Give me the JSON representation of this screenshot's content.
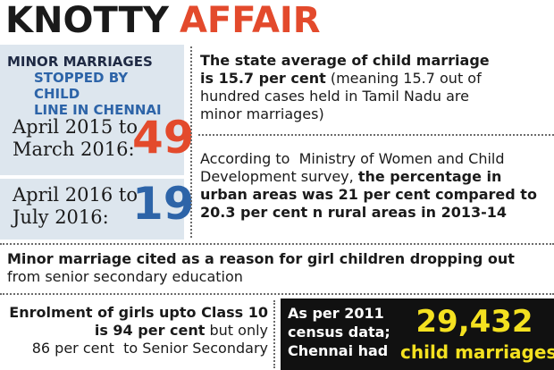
{
  "title": {
    "part1": "KNOTTY",
    "part2": "AFFAIR"
  },
  "colors": {
    "title_dark": "#1a1a1a",
    "title_accent": "#e34a2c",
    "blue": "#2d64a8",
    "panel_bg": "#dde6ee",
    "black_box": "#111111",
    "highlight_yellow": "#f4e120"
  },
  "left_panel": {
    "heading_line1": "MINOR MARRIAGES",
    "heading_line2": "STOPPED BY CHILD",
    "heading_line3": "LINE IN CHENNAI",
    "rows": [
      {
        "period_line1": "April 2015 to",
        "period_line2": "March 2016:",
        "value": "49"
      },
      {
        "period_line1": "April 2016 to",
        "period_line2": "July 2016:",
        "value": "19"
      }
    ]
  },
  "fact1": {
    "line1_bold": "The state average of child marriage",
    "line2_bold": "is 15.7 per cent",
    "line2_rest": " (meaning 15.7 out of",
    "line3": "hundred cases held in Tamil Nadu are",
    "line4": "minor marriages)"
  },
  "fact2": {
    "line1": "According to  Ministry of Women and Child",
    "line2_plain": "Development survey, ",
    "line2_bold": "the percentage in",
    "line3_bold": "urban areas was 21 per cent compared to",
    "line4_bold": "20.3 per cent n rural areas in 2013-14"
  },
  "fact3": {
    "line1_bold": "Minor marriage cited as a reason for girl children dropping out",
    "line2": "from senior secondary education"
  },
  "fact4": {
    "line1_bold": "Enrolment of girls upto Class 10",
    "line2_bold": "is 94 per cent",
    "line2_rest": " but only",
    "line3": "86 per cent  to Senior Secondary"
  },
  "census": {
    "line1": "As per 2011",
    "line2": "census data;",
    "line3": "Chennai had",
    "number": "29,432",
    "label": "child marriages"
  }
}
